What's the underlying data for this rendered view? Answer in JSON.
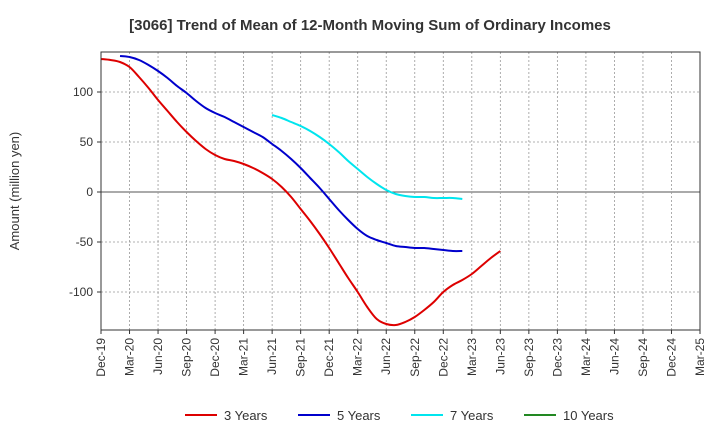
{
  "chart_data": {
    "type": "line",
    "title": "[3066]  Trend of Mean of 12-Month Moving Sum of Ordinary Incomes",
    "xlabel": "",
    "ylabel": "Amount (million yen)",
    "ylim": [
      -138,
      140
    ],
    "yticks": [
      100,
      50,
      0,
      -50,
      -100
    ],
    "ytick_labels": [
      "100",
      "50",
      "0",
      "-50",
      "-100"
    ],
    "x_start": "Dec-19",
    "x_ticks": [
      "Dec-19",
      "Mar-20",
      "Jun-20",
      "Sep-20",
      "Dec-20",
      "Mar-21",
      "Jun-21",
      "Sep-21",
      "Dec-21",
      "Mar-22",
      "Jun-22",
      "Sep-22",
      "Dec-22",
      "Mar-23",
      "Jun-23",
      "Sep-23",
      "Dec-23",
      "Mar-24",
      "Jun-24",
      "Sep-24",
      "Dec-24",
      "Mar-25"
    ],
    "series": [
      {
        "name": "3 Years",
        "color": "#dd0000",
        "points": [
          [
            0,
            133
          ],
          [
            1,
            132
          ],
          [
            2,
            130
          ],
          [
            3,
            125
          ],
          [
            4,
            115
          ],
          [
            5,
            104
          ],
          [
            6,
            92
          ],
          [
            7,
            81
          ],
          [
            8,
            70
          ],
          [
            9,
            60
          ],
          [
            10,
            51
          ],
          [
            11,
            43
          ],
          [
            12,
            37
          ],
          [
            13,
            33
          ],
          [
            14,
            31
          ],
          [
            15,
            28
          ],
          [
            16,
            24
          ],
          [
            17,
            19
          ],
          [
            18,
            13
          ],
          [
            19,
            5
          ],
          [
            20,
            -5
          ],
          [
            21,
            -17
          ],
          [
            22,
            -29
          ],
          [
            23,
            -42
          ],
          [
            24,
            -56
          ],
          [
            25,
            -71
          ],
          [
            26,
            -86
          ],
          [
            27,
            -100
          ],
          [
            28,
            -115
          ],
          [
            29,
            -127
          ],
          [
            30,
            -132
          ],
          [
            31,
            -133
          ],
          [
            32,
            -130
          ],
          [
            33,
            -125
          ],
          [
            34,
            -118
          ],
          [
            35,
            -110
          ],
          [
            36,
            -100
          ],
          [
            37,
            -93
          ],
          [
            38,
            -88
          ],
          [
            39,
            -82
          ],
          [
            40,
            -74
          ],
          [
            41,
            -66
          ],
          [
            42,
            -59
          ]
        ]
      },
      {
        "name": "5 Years",
        "color": "#0000cc",
        "points": [
          [
            2,
            136
          ],
          [
            3,
            135
          ],
          [
            4,
            132
          ],
          [
            5,
            127
          ],
          [
            6,
            121
          ],
          [
            7,
            114
          ],
          [
            8,
            106
          ],
          [
            9,
            99
          ],
          [
            10,
            91
          ],
          [
            11,
            84
          ],
          [
            12,
            79
          ],
          [
            13,
            75
          ],
          [
            14,
            70
          ],
          [
            15,
            65
          ],
          [
            16,
            60
          ],
          [
            17,
            55
          ],
          [
            18,
            48
          ],
          [
            19,
            41
          ],
          [
            20,
            33
          ],
          [
            21,
            24
          ],
          [
            22,
            14
          ],
          [
            23,
            4
          ],
          [
            24,
            -7
          ],
          [
            25,
            -18
          ],
          [
            26,
            -28
          ],
          [
            27,
            -37
          ],
          [
            28,
            -44
          ],
          [
            29,
            -48
          ],
          [
            30,
            -51
          ],
          [
            31,
            -54
          ],
          [
            32,
            -55
          ],
          [
            33,
            -56
          ],
          [
            34,
            -56
          ],
          [
            35,
            -57
          ],
          [
            36,
            -58
          ],
          [
            37,
            -59
          ],
          [
            38,
            -59
          ]
        ]
      },
      {
        "name": "7 Years",
        "color": "#00e5ee",
        "points": [
          [
            18,
            77
          ],
          [
            19,
            74
          ],
          [
            20,
            70
          ],
          [
            21,
            66
          ],
          [
            22,
            61
          ],
          [
            23,
            55
          ],
          [
            24,
            48
          ],
          [
            25,
            40
          ],
          [
            26,
            31
          ],
          [
            27,
            23
          ],
          [
            28,
            15
          ],
          [
            29,
            8
          ],
          [
            30,
            2
          ],
          [
            31,
            -2
          ],
          [
            32,
            -4
          ],
          [
            33,
            -5
          ],
          [
            34,
            -5
          ],
          [
            35,
            -6
          ],
          [
            36,
            -6
          ],
          [
            37,
            -6
          ],
          [
            38,
            -7
          ]
        ]
      },
      {
        "name": "10 Years",
        "color": "#228822",
        "points": []
      }
    ],
    "legend_position": "bottom",
    "grid": true
  }
}
